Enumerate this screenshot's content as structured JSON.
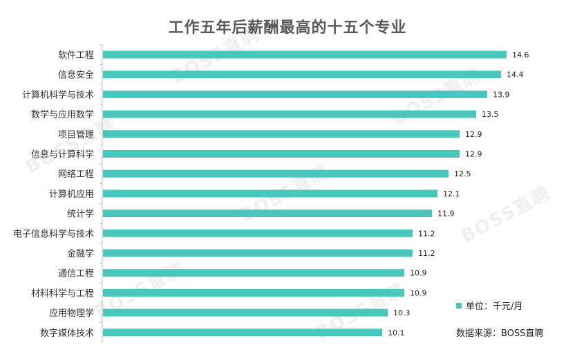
{
  "chart_data": {
    "type": "bar",
    "orientation": "horizontal",
    "title": "工作五年后薪酬最高的十五个专业",
    "categories": [
      "软件工程",
      "信息安全",
      "计算机科学与技术",
      "数学与应用数学",
      "项目管理",
      "信息与计算科学",
      "网络工程",
      "计算机应用",
      "统计学",
      "电子信息科学与技术",
      "金融学",
      "通信工程",
      "材料科学与工程",
      "应用物理学",
      "数字媒体技术"
    ],
    "values": [
      14.6,
      14.4,
      13.9,
      13.5,
      12.9,
      12.9,
      12.5,
      12.1,
      11.9,
      11.2,
      11.2,
      10.9,
      10.9,
      10.3,
      10.1
    ],
    "value_labels": [
      "14.6",
      "14.4",
      "13.9",
      "13.5",
      "12.9",
      "12.9",
      "12.5",
      "12.1",
      "11.9",
      "11.2",
      "11.2",
      "10.9",
      "10.9",
      "10.3",
      "10.1"
    ],
    "xlim": [
      0,
      16
    ],
    "grid": false,
    "bar_color": "#4ac7bd",
    "legend": {
      "label": "单位：千元/月",
      "position": "bottom-right"
    },
    "source": "数据来源：BOSS直聘",
    "watermark": "BOSS直聘"
  }
}
